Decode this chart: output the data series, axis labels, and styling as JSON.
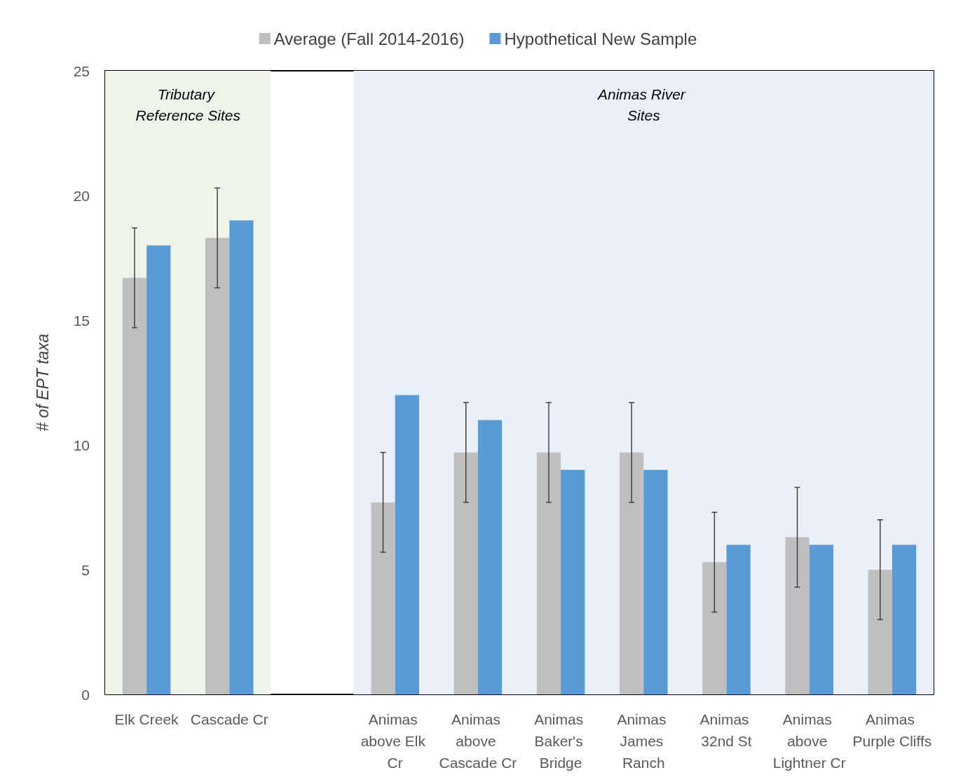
{
  "chart_data": {
    "type": "bar",
    "ylabel": "# of EPT taxa",
    "categories": [
      "Elk Creek",
      "Cascade Cr",
      null,
      "Animas above Elk Cr",
      "Animas above Cascade Cr",
      "Animas Baker's Bridge",
      "Animas James Ranch",
      "Animas 32nd St",
      "Animas above Lightner Cr",
      "Animas Purple Cliffs"
    ],
    "series": [
      {
        "name": "Average (Fall 2014-2016)",
        "color": "#bfbfbf",
        "values": [
          16.7,
          18.3,
          null,
          7.7,
          9.7,
          9.7,
          9.7,
          5.3,
          6.3,
          5.0
        ],
        "errors": [
          2,
          2,
          null,
          2,
          2,
          2,
          2,
          2,
          2,
          2
        ]
      },
      {
        "name": "Hypothetical New Sample",
        "color": "#5b9bd5",
        "values": [
          18,
          19,
          null,
          12,
          11,
          9,
          9,
          6,
          6,
          6
        ]
      }
    ],
    "bands": [
      {
        "axis": "x",
        "from": "Elk Creek",
        "to": "Cascade Cr",
        "label": "Tributary Reference Sites",
        "color": "#eef4e8"
      },
      {
        "axis": "x",
        "from": "Animas above Elk Cr",
        "to": "Animas Purple Cliffs",
        "label": "Animas River Sites",
        "color": "#eaf0f9"
      }
    ],
    "ylim": [
      0,
      25
    ],
    "yticks": [
      0,
      5,
      10,
      15,
      20,
      25
    ],
    "grid": false,
    "legend": "top"
  }
}
